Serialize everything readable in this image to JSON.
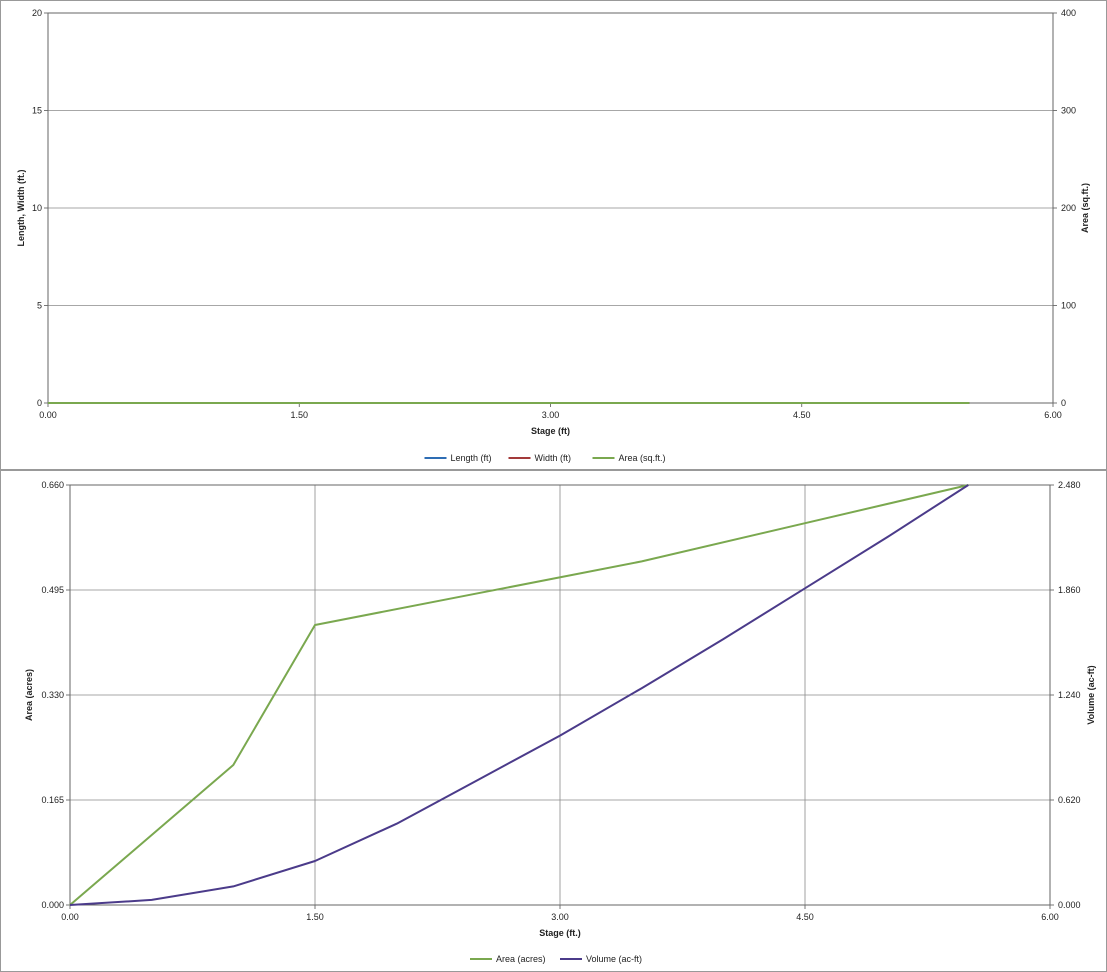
{
  "chart_data": [
    {
      "type": "line",
      "title": "",
      "xlabel": "Stage (ft)",
      "ylabel": "Length, Width (ft.)",
      "y2label": "Area (sq.ft.)",
      "xlim": [
        0,
        6
      ],
      "ylim": [
        0,
        20
      ],
      "y2lim": [
        0,
        400
      ],
      "x_ticks": [
        "0.00",
        "1.50",
        "3.00",
        "4.50",
        "6.00"
      ],
      "y_ticks": [
        "0",
        "5",
        "10",
        "15",
        "20"
      ],
      "y2_ticks": [
        "0",
        "100",
        "200",
        "300",
        "400"
      ],
      "grid": "horizontal",
      "legend_position": "bottom",
      "series": [
        {
          "name": "Length (ft)",
          "axis": "left",
          "color": "#2e6db4",
          "x": [
            0,
            5.5
          ],
          "values": [
            0,
            0
          ]
        },
        {
          "name": "Width (ft)",
          "axis": "left",
          "color": "#a33a3a",
          "x": [
            0,
            5.5
          ],
          "values": [
            0,
            0
          ]
        },
        {
          "name": "Area (sq.ft.)",
          "axis": "right",
          "color": "#7aa84f",
          "x": [
            0,
            5.5
          ],
          "values": [
            0,
            0
          ]
        }
      ]
    },
    {
      "type": "line",
      "title": "",
      "xlabel": "Stage (ft.)",
      "ylabel": "Area (acres)",
      "y2label": "Volume (ac-ft)",
      "xlim": [
        0,
        6
      ],
      "ylim": [
        0,
        0.66
      ],
      "y2lim": [
        0,
        2.48
      ],
      "x_ticks": [
        "0.00",
        "1.50",
        "3.00",
        "4.50",
        "6.00"
      ],
      "y_ticks": [
        "0.000",
        "0.165",
        "0.330",
        "0.495",
        "0.660"
      ],
      "y2_ticks": [
        "0.000",
        "0.620",
        "1.240",
        "1.860",
        "2.480"
      ],
      "grid": "both",
      "legend_position": "bottom",
      "series": [
        {
          "name": "Area (acres)",
          "axis": "left",
          "color": "#7aa84f",
          "x": [
            0,
            0.5,
            1.0,
            1.5,
            2.5,
            3.5,
            4.5,
            5.5
          ],
          "values": [
            0,
            0.11,
            0.22,
            0.44,
            0.49,
            0.54,
            0.6,
            0.66
          ]
        },
        {
          "name": "Volume (ac-ft)",
          "axis": "right",
          "color": "#4b3b8a",
          "x": [
            0,
            0.5,
            1.0,
            1.5,
            2.0,
            2.5,
            3.0,
            3.5,
            4.0,
            4.5,
            5.0,
            5.5
          ],
          "values": [
            0,
            0.03,
            0.11,
            0.26,
            0.48,
            0.74,
            1.0,
            1.28,
            1.57,
            1.87,
            2.17,
            2.48
          ]
        }
      ]
    }
  ]
}
